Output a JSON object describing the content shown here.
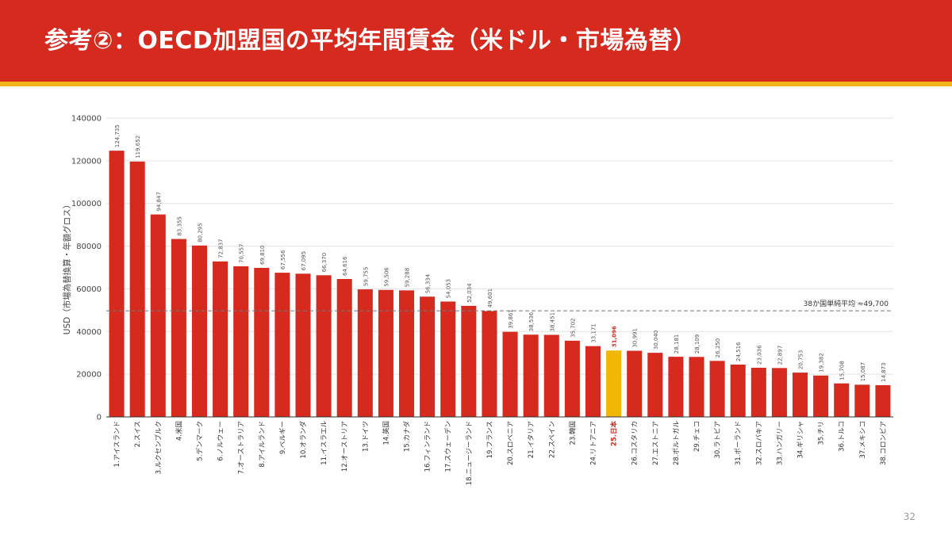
{
  "slide": {
    "title": "参考②：OECD加盟国の平均年間賃金（米ドル・市場為替）",
    "page_number": "32"
  },
  "colors": {
    "header": "#d72a1f",
    "header_stripe": "#f3b41c",
    "bar": "#d72a1f",
    "highlight_bar": "#f2b705",
    "highlight_label": "#d72a1f",
    "avg_line": "#777777"
  },
  "chart_data": {
    "type": "bar",
    "title": "",
    "xlabel": "",
    "ylabel": "USD（市場為替換算・年額グロス）",
    "ylim": [
      0,
      140000
    ],
    "yticks": [
      0,
      20000,
      40000,
      60000,
      80000,
      100000,
      120000,
      140000
    ],
    "grid": true,
    "highlight_category": "25.日本",
    "reference_line": {
      "value": 49700,
      "label": "38か国単純平均 ≈49,700"
    },
    "categories": [
      "1.アイスランド",
      "2.スイス",
      "3.ルクセンブルク",
      "4.米国",
      "5.デンマーク",
      "6.ノルウェー",
      "7.オーストラリア",
      "8.アイルランド",
      "9.ベルギー",
      "10.オランダ",
      "11.イスラエル",
      "12.オーストリア",
      "13.ドイツ",
      "14.英国",
      "15.カナダ",
      "16.フィンランド",
      "17.スウェーデン",
      "18.ニュージーランド",
      "19.フランス",
      "20.スロベニア",
      "21.イタリア",
      "22.スペイン",
      "23.韓国",
      "24.リトアニア",
      "25.日本",
      "26.コスタリカ",
      "27.エストニア",
      "28.ポルトガル",
      "29.チェコ",
      "30.ラトビア",
      "31.ポーランド",
      "32.スロバキア",
      "33.ハンガリー",
      "34.ギリシャ",
      "35.チリ",
      "36.トルコ",
      "37.メキシコ",
      "38.コロンビア"
    ],
    "values": [
      124735,
      119652,
      94847,
      83355,
      80295,
      72837,
      70557,
      69810,
      67556,
      67095,
      66370,
      64616,
      59755,
      59506,
      59288,
      56334,
      54053,
      52034,
      49601,
      39861,
      38536,
      38451,
      35702,
      33171,
      31096,
      30991,
      30040,
      28181,
      28109,
      26250,
      24516,
      23036,
      22897,
      20753,
      19382,
      15708,
      15087,
      14873
    ],
    "value_labels": [
      "124,735",
      "119,652",
      "94,847",
      "83,355",
      "80,295",
      "72,837",
      "70,557",
      "69,810",
      "67,556",
      "67,095",
      "66,370",
      "64,616",
      "59,755",
      "59,506",
      "59,288",
      "56,334",
      "54,053",
      "52,034",
      "49,601",
      "39,861",
      "38,536",
      "38,451",
      "35,702",
      "33,171",
      "31,096",
      "30,991",
      "30,040",
      "28,181",
      "28,109",
      "26,250",
      "24,516",
      "23,036",
      "22,897",
      "20,753",
      "19,382",
      "15,708",
      "15,087",
      "14,873"
    ]
  }
}
